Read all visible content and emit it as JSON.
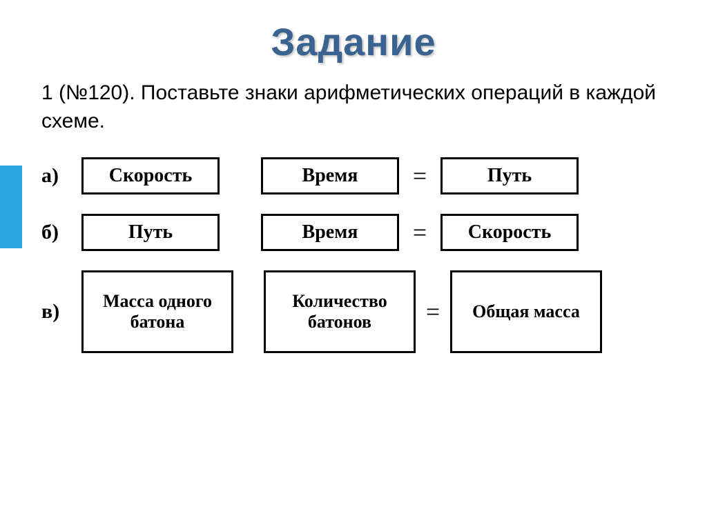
{
  "accent_color": "#2da2e0",
  "title_color": "#3a638f",
  "title": "Задание",
  "instruction_lead": "1 (№120).",
  "instruction_text": " Поставьте знаки арифметических операций в каждой схеме.",
  "equals": "=",
  "rows": [
    {
      "label": "а)",
      "size": "small",
      "cells": [
        "Скорость",
        "Время",
        "Путь"
      ]
    },
    {
      "label": "б)",
      "size": "small",
      "cells": [
        "Путь",
        "Время",
        "Скорость"
      ]
    },
    {
      "label": "в)",
      "size": "big",
      "cells": [
        "Масса одного батона",
        "Количество батонов",
        "Общая масса"
      ]
    }
  ]
}
